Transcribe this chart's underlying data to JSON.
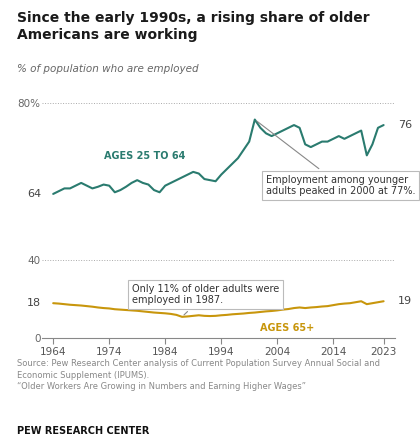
{
  "title": "Since the early 1990s, a rising share of older\nAmericans are working",
  "subtitle": "% of population who are employed",
  "years_25to64": [
    1964,
    1965,
    1966,
    1967,
    1968,
    1969,
    1970,
    1971,
    1972,
    1973,
    1974,
    1975,
    1976,
    1977,
    1978,
    1979,
    1980,
    1981,
    1982,
    1983,
    1984,
    1985,
    1986,
    1987,
    1988,
    1989,
    1990,
    1991,
    1992,
    1993,
    1994,
    1995,
    1996,
    1997,
    1998,
    1999,
    2000,
    2001,
    2002,
    2003,
    2004,
    2005,
    2006,
    2007,
    2008,
    2009,
    2010,
    2011,
    2012,
    2013,
    2014,
    2015,
    2016,
    2017,
    2018,
    2019,
    2020,
    2021,
    2022,
    2023
  ],
  "values_25to64": [
    63.5,
    64.0,
    64.5,
    64.5,
    65.0,
    65.5,
    65.0,
    64.5,
    64.8,
    65.2,
    65.0,
    63.8,
    64.2,
    64.8,
    65.5,
    66.0,
    65.5,
    65.2,
    64.2,
    63.8,
    65.0,
    65.5,
    66.0,
    66.5,
    67.0,
    67.5,
    67.2,
    66.2,
    66.0,
    65.8,
    67.0,
    68.0,
    69.0,
    70.0,
    71.5,
    73.0,
    77.0,
    75.5,
    74.5,
    74.0,
    74.5,
    75.0,
    75.5,
    76.0,
    75.5,
    72.5,
    72.0,
    72.5,
    73.0,
    73.0,
    73.5,
    74.0,
    73.5,
    74.0,
    74.5,
    75.0,
    70.5,
    72.5,
    75.5,
    76.0
  ],
  "years_65plus": [
    1964,
    1965,
    1966,
    1967,
    1968,
    1969,
    1970,
    1971,
    1972,
    1973,
    1974,
    1975,
    1976,
    1977,
    1978,
    1979,
    1980,
    1981,
    1982,
    1983,
    1984,
    1985,
    1986,
    1987,
    1988,
    1989,
    1990,
    1991,
    1992,
    1993,
    1994,
    1995,
    1996,
    1997,
    1998,
    1999,
    2000,
    2001,
    2002,
    2003,
    2004,
    2005,
    2006,
    2007,
    2008,
    2009,
    2010,
    2011,
    2012,
    2013,
    2014,
    2015,
    2016,
    2017,
    2018,
    2019,
    2020,
    2021,
    2022,
    2023
  ],
  "values_65plus": [
    18.0,
    17.8,
    17.5,
    17.2,
    17.0,
    16.8,
    16.5,
    16.2,
    15.8,
    15.5,
    15.3,
    14.9,
    14.7,
    14.5,
    14.3,
    14.1,
    13.8,
    13.5,
    13.2,
    13.0,
    12.8,
    12.5,
    12.0,
    11.0,
    11.2,
    11.5,
    11.8,
    11.5,
    11.4,
    11.5,
    11.8,
    12.0,
    12.3,
    12.5,
    12.7,
    13.0,
    13.2,
    13.5,
    13.8,
    14.0,
    14.3,
    14.7,
    15.0,
    15.5,
    15.8,
    15.5,
    15.8,
    16.0,
    16.3,
    16.5,
    17.0,
    17.5,
    17.8,
    18.0,
    18.5,
    19.0,
    17.5,
    18.0,
    18.5,
    19.0
  ],
  "color_25to64": "#2a7b6f",
  "color_65plus": "#c8960c",
  "background_color": "#ffffff",
  "source_text": "Source: Pew Research Center analysis of Current Population Survey Annual Social and\nEconomic Supplement (IPUMS).\n“Older Workers Are Growing in Numbers and Earning Higher Wages”",
  "brand_text": "PEW RESEARCH CENTER",
  "annotation_upper": "Employment among younger\nadults peaked in 2000 at 77%.",
  "annotation_lower": "Only 11% of older adults were\nemployed in 1987.",
  "annotation_upper_year": 2000,
  "annotation_upper_val": 77.0,
  "annotation_lower_year": 1987,
  "annotation_lower_val": 11.0,
  "label_64": "64",
  "label_76": "76",
  "label_18": "18",
  "label_19": "19",
  "xticks": [
    1964,
    1974,
    1984,
    1994,
    2004,
    2014,
    2023
  ]
}
